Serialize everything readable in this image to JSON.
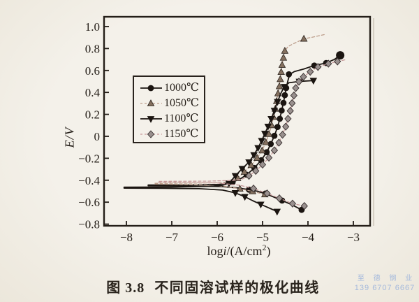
{
  "page": {
    "caption_prefix": "图 3.8",
    "caption_text": "不同固溶试样的极化曲线",
    "watermark_line1": "至 德 钢 业",
    "watermark_line2": "139 6707 6667",
    "watermark_color": "#a3b8dc",
    "paper_color": "#f2efe8",
    "ink_color": "#241e18"
  },
  "chart_data": {
    "type": "line",
    "title": "",
    "xlabel": "logi/(A/cm²)",
    "xlabel_parts": {
      "log": "log",
      "i": "i",
      "rest": "/(A/cm",
      "sup": "2",
      "close": ")"
    },
    "ylabel": "E/V",
    "xlim": [
      -8.5,
      -2.6
    ],
    "ylim": [
      -0.82,
      1.09
    ],
    "x_ticks": [
      -8,
      -7,
      -6,
      -5,
      -4,
      -3
    ],
    "x_tick_labels": [
      "−8",
      "−7",
      "−6",
      "−5",
      "−4",
      "−3"
    ],
    "y_ticks": [
      1.0,
      0.8,
      0.6,
      0.4,
      0.2,
      0,
      -0.2,
      -0.4,
      -0.6,
      -0.8
    ],
    "y_tick_labels": [
      "1.0",
      "0.8",
      "0.6",
      "0.4",
      "0.2",
      "0",
      "−0.2",
      "−0.4",
      "−0.6",
      "−0.8"
    ],
    "grid": false,
    "legend_position": "inside-upper-left",
    "series": [
      {
        "name": "1000℃",
        "marker": "circle",
        "line_style": "solid",
        "line_color": "#1b1511",
        "marker_fill": "#1b1511",
        "marker_edge": "#1b1511",
        "path": [
          [
            -4.14,
            -0.67
          ],
          [
            -4.35,
            -0.625
          ],
          [
            -4.57,
            -0.585
          ],
          [
            -4.76,
            -0.552
          ],
          [
            -4.94,
            -0.522
          ],
          [
            -5.12,
            -0.5
          ],
          [
            -5.3,
            -0.486
          ],
          [
            -5.55,
            -0.47
          ],
          [
            -5.9,
            -0.458
          ],
          [
            -6.6,
            -0.452
          ],
          [
            -7.52,
            -0.45
          ],
          [
            -7.52,
            -0.444
          ],
          [
            -6.6,
            -0.443
          ],
          [
            -5.95,
            -0.438
          ],
          [
            -5.66,
            -0.418
          ],
          [
            -5.48,
            -0.385
          ],
          [
            -5.35,
            -0.35
          ],
          [
            -5.18,
            -0.288
          ],
          [
            -5.03,
            -0.218
          ],
          [
            -4.91,
            -0.145
          ],
          [
            -4.82,
            -0.07
          ],
          [
            -4.74,
            0.005
          ],
          [
            -4.67,
            0.085
          ],
          [
            -4.62,
            0.16
          ],
          [
            -4.58,
            0.235
          ],
          [
            -4.54,
            0.305
          ],
          [
            -4.51,
            0.375
          ],
          [
            -4.48,
            0.44
          ],
          [
            -4.44,
            0.51
          ],
          [
            -4.4,
            0.565
          ],
          [
            -4.3,
            0.59
          ],
          [
            -4.1,
            0.612
          ],
          [
            -3.86,
            0.645
          ],
          [
            -3.6,
            0.668
          ],
          [
            -3.42,
            0.7
          ],
          [
            -3.29,
            0.738
          ]
        ],
        "marker_points": [
          [
            -4.14,
            -0.67
          ],
          [
            -4.57,
            -0.585
          ],
          [
            -4.94,
            -0.522
          ],
          [
            -5.3,
            -0.486
          ],
          [
            -5.66,
            -0.418
          ],
          [
            -5.35,
            -0.35
          ],
          [
            -5.18,
            -0.288
          ],
          [
            -5.03,
            -0.218
          ],
          [
            -4.91,
            -0.145
          ],
          [
            -4.82,
            -0.07
          ],
          [
            -4.74,
            0.005
          ],
          [
            -4.67,
            0.085
          ],
          [
            -4.62,
            0.16
          ],
          [
            -4.58,
            0.235
          ],
          [
            -4.54,
            0.305
          ],
          [
            -4.51,
            0.375
          ],
          [
            -4.48,
            0.44
          ],
          [
            -4.42,
            0.565
          ],
          [
            -3.86,
            0.645
          ],
          [
            -3.6,
            0.668
          ],
          [
            -3.29,
            0.738
          ]
        ]
      },
      {
        "name": "1050℃",
        "marker": "triangle-up",
        "line_style": "dashed",
        "line_color": "#bd9e8c",
        "marker_fill": "#84705f",
        "marker_edge": "#2c241e",
        "path": [
          [
            -4.95,
            -0.53
          ],
          [
            -5.22,
            -0.502
          ],
          [
            -5.5,
            -0.478
          ],
          [
            -5.85,
            -0.455
          ],
          [
            -6.5,
            -0.44
          ],
          [
            -7.38,
            -0.435
          ],
          [
            -7.38,
            -0.428
          ],
          [
            -6.5,
            -0.426
          ],
          [
            -5.9,
            -0.422
          ],
          [
            -5.7,
            -0.408
          ],
          [
            -5.55,
            -0.382
          ],
          [
            -5.4,
            -0.325
          ],
          [
            -5.25,
            -0.263
          ],
          [
            -5.12,
            -0.198
          ],
          [
            -5.01,
            -0.13
          ],
          [
            -4.93,
            -0.055
          ],
          [
            -4.86,
            0.02
          ],
          [
            -4.8,
            0.1
          ],
          [
            -4.76,
            0.175
          ],
          [
            -4.72,
            0.25
          ],
          [
            -4.69,
            0.32
          ],
          [
            -4.66,
            0.39
          ],
          [
            -4.63,
            0.455
          ],
          [
            -4.61,
            0.52
          ],
          [
            -4.59,
            0.585
          ],
          [
            -4.57,
            0.65
          ],
          [
            -4.54,
            0.715
          ],
          [
            -4.51,
            0.778
          ],
          [
            -4.44,
            0.818
          ],
          [
            -4.3,
            0.848
          ],
          [
            -4.09,
            0.888
          ],
          [
            -3.88,
            0.905
          ],
          [
            -3.63,
            0.928
          ]
        ],
        "marker_points": [
          [
            -4.95,
            -0.53
          ],
          [
            -5.22,
            -0.502
          ],
          [
            -5.5,
            -0.478
          ],
          [
            -5.55,
            -0.382
          ],
          [
            -5.4,
            -0.325
          ],
          [
            -5.25,
            -0.263
          ],
          [
            -5.12,
            -0.198
          ],
          [
            -5.01,
            -0.13
          ],
          [
            -4.93,
            -0.055
          ],
          [
            -4.86,
            0.02
          ],
          [
            -4.8,
            0.1
          ],
          [
            -4.76,
            0.175
          ],
          [
            -4.72,
            0.25
          ],
          [
            -4.69,
            0.32
          ],
          [
            -4.66,
            0.39
          ],
          [
            -4.63,
            0.455
          ],
          [
            -4.61,
            0.52
          ],
          [
            -4.59,
            0.585
          ],
          [
            -4.57,
            0.65
          ],
          [
            -4.54,
            0.715
          ],
          [
            -4.51,
            0.778
          ],
          [
            -4.09,
            0.888
          ]
        ]
      },
      {
        "name": "1100℃",
        "marker": "triangle-down",
        "line_style": "solid",
        "line_color": "#1b1511",
        "marker_fill": "#1b1511",
        "marker_edge": "#1b1511",
        "path": [
          [
            -4.68,
            -0.685
          ],
          [
            -4.86,
            -0.652
          ],
          [
            -5.04,
            -0.62
          ],
          [
            -5.22,
            -0.586
          ],
          [
            -5.39,
            -0.55
          ],
          [
            -5.6,
            -0.515
          ],
          [
            -5.88,
            -0.49
          ],
          [
            -6.4,
            -0.477
          ],
          [
            -7.2,
            -0.473
          ],
          [
            -8.05,
            -0.472
          ],
          [
            -8.05,
            -0.464
          ],
          [
            -7.0,
            -0.462
          ],
          [
            -6.2,
            -0.456
          ],
          [
            -5.9,
            -0.448
          ],
          [
            -5.74,
            -0.428
          ],
          [
            -5.6,
            -0.36
          ],
          [
            -5.45,
            -0.295
          ],
          [
            -5.3,
            -0.235
          ],
          [
            -5.19,
            -0.17
          ],
          [
            -5.1,
            -0.105
          ],
          [
            -5.02,
            -0.04
          ],
          [
            -4.95,
            0.025
          ],
          [
            -4.88,
            0.09
          ],
          [
            -4.81,
            0.16
          ],
          [
            -4.74,
            0.235
          ],
          [
            -4.67,
            0.315
          ],
          [
            -4.6,
            0.39
          ],
          [
            -4.52,
            0.452
          ],
          [
            -4.42,
            0.488
          ],
          [
            -4.19,
            0.5
          ],
          [
            -3.88,
            0.508
          ]
        ],
        "marker_points": [
          [
            -4.68,
            -0.685
          ],
          [
            -5.04,
            -0.62
          ],
          [
            -5.39,
            -0.55
          ],
          [
            -5.6,
            -0.515
          ],
          [
            -5.74,
            -0.428
          ],
          [
            -5.6,
            -0.36
          ],
          [
            -5.45,
            -0.295
          ],
          [
            -5.3,
            -0.235
          ],
          [
            -5.19,
            -0.17
          ],
          [
            -5.1,
            -0.105
          ],
          [
            -5.02,
            -0.04
          ],
          [
            -4.95,
            0.025
          ],
          [
            -4.88,
            0.09
          ],
          [
            -4.81,
            0.16
          ],
          [
            -4.74,
            0.235
          ],
          [
            -4.67,
            0.315
          ],
          [
            -4.52,
            0.452
          ],
          [
            -4.19,
            0.5
          ],
          [
            -3.88,
            0.508
          ]
        ]
      },
      {
        "name": "1150℃",
        "marker": "diamond",
        "line_style": "dashed",
        "line_color": "#c79a9a",
        "marker_fill": "#99908e",
        "marker_edge": "#342c2c",
        "path": [
          [
            -4.08,
            -0.635
          ],
          [
            -4.34,
            -0.613
          ],
          [
            -4.63,
            -0.565
          ],
          [
            -4.9,
            -0.52
          ],
          [
            -5.2,
            -0.476
          ],
          [
            -5.5,
            -0.446
          ],
          [
            -6.0,
            -0.425
          ],
          [
            -7.3,
            -0.418
          ],
          [
            -7.3,
            -0.41
          ],
          [
            -6.2,
            -0.408
          ],
          [
            -5.65,
            -0.402
          ],
          [
            -5.45,
            -0.39
          ],
          [
            -5.3,
            -0.36
          ],
          [
            -5.15,
            -0.315
          ],
          [
            -5.0,
            -0.258
          ],
          [
            -4.86,
            -0.195
          ],
          [
            -4.74,
            -0.128
          ],
          [
            -4.64,
            -0.058
          ],
          [
            -4.56,
            0.015
          ],
          [
            -4.49,
            0.088
          ],
          [
            -4.44,
            0.16
          ],
          [
            -4.39,
            0.232
          ],
          [
            -4.35,
            0.302
          ],
          [
            -4.31,
            0.372
          ],
          [
            -4.27,
            0.44
          ],
          [
            -4.2,
            0.498
          ],
          [
            -4.1,
            0.542
          ],
          [
            -3.95,
            0.588
          ],
          [
            -3.78,
            0.632
          ],
          [
            -3.55,
            0.662
          ],
          [
            -3.35,
            0.682
          ],
          [
            -3.17,
            0.698
          ]
        ],
        "marker_points": [
          [
            -4.08,
            -0.635
          ],
          [
            -4.34,
            -0.613
          ],
          [
            -4.63,
            -0.565
          ],
          [
            -4.9,
            -0.52
          ],
          [
            -5.2,
            -0.476
          ],
          [
            -5.3,
            -0.36
          ],
          [
            -5.15,
            -0.315
          ],
          [
            -5.0,
            -0.258
          ],
          [
            -4.86,
            -0.195
          ],
          [
            -4.74,
            -0.128
          ],
          [
            -4.64,
            -0.058
          ],
          [
            -4.56,
            0.015
          ],
          [
            -4.49,
            0.088
          ],
          [
            -4.44,
            0.16
          ],
          [
            -4.39,
            0.232
          ],
          [
            -4.35,
            0.302
          ],
          [
            -4.31,
            0.372
          ],
          [
            -4.27,
            0.44
          ],
          [
            -4.2,
            0.498
          ],
          [
            -4.1,
            0.542
          ],
          [
            -3.95,
            0.588
          ],
          [
            -3.78,
            0.632
          ],
          [
            -3.55,
            0.662
          ],
          [
            -3.35,
            0.682
          ]
        ]
      }
    ]
  }
}
